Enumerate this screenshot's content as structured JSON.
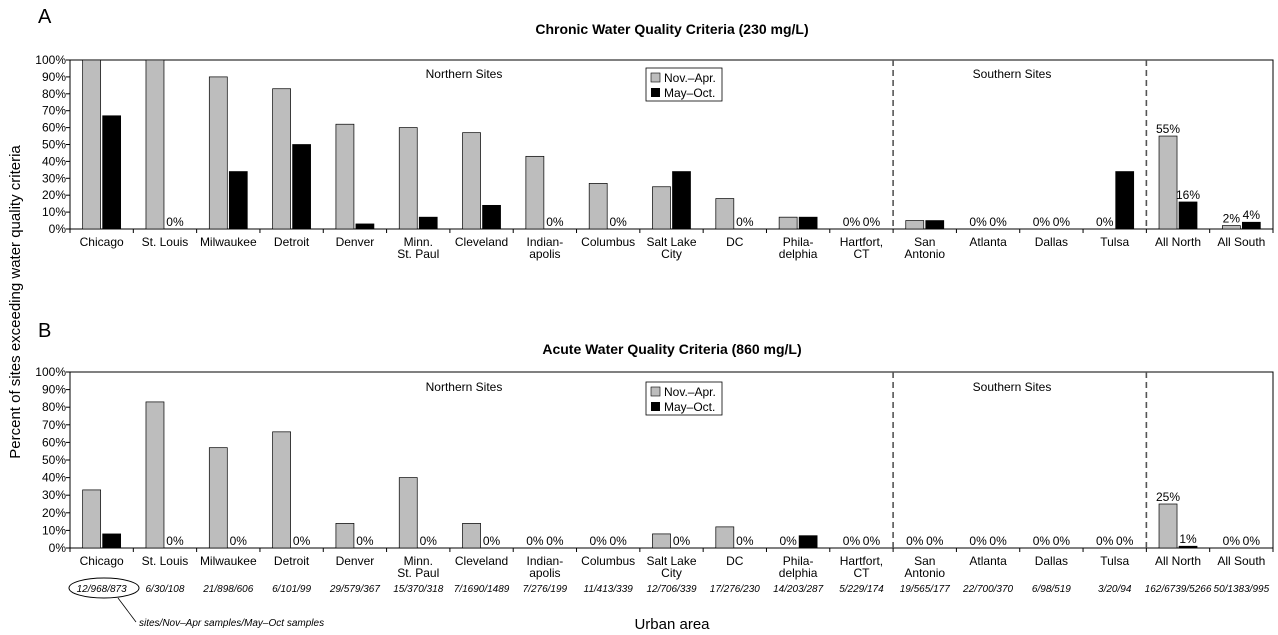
{
  "y_axis_title": "Percent of sites exceeding water quality criteria",
  "x_axis_title": "Urban area",
  "sample_note": "sites/Nov–Apr samples/May–Oct samples",
  "regions": {
    "north": "Northern Sites",
    "south": "Southern Sites"
  },
  "legend": {
    "winter": "Nov.–Apr.",
    "summer": "May–Oct."
  },
  "colors": {
    "winter": "#bdbdbd",
    "summer": "#000000",
    "axis": "#000000",
    "divider": "#555555"
  },
  "sample_counts": [
    "12/968/873",
    "6/30/108",
    "21/898/606",
    "6/101/99",
    "29/579/367",
    "15/370/318",
    "7/1690/1489",
    "7/276/199",
    "11/413/339",
    "12/706/339",
    "17/276/230",
    "14/203/287",
    "5/229/174",
    "19/565/177",
    "22/700/370",
    "6/98/519",
    "3/20/94",
    "162/6739/5266",
    "50/1383/995"
  ],
  "chart_data": [
    {
      "panel": "A",
      "type": "bar",
      "title": "Chronic Water Quality Criteria (230 mg/L)",
      "ylim": [
        0,
        100
      ],
      "yticks": [
        "0%",
        "10%",
        "20%",
        "30%",
        "40%",
        "50%",
        "60%",
        "70%",
        "80%",
        "90%",
        "100%"
      ],
      "categories": [
        [
          "Chicago"
        ],
        [
          "St. Louis"
        ],
        [
          "Milwaukee"
        ],
        [
          "Detroit"
        ],
        [
          "Denver"
        ],
        [
          "Minn.",
          "St. Paul"
        ],
        [
          "Cleveland"
        ],
        [
          "Indian-",
          "apolis"
        ],
        [
          "Columbus"
        ],
        [
          "Salt Lake",
          "City"
        ],
        [
          "DC"
        ],
        [
          "Phila-",
          "delphia"
        ],
        [
          "Hartfort,",
          "CT"
        ],
        [
          "San",
          "Antonio"
        ],
        [
          "Atlanta"
        ],
        [
          "Dallas"
        ],
        [
          "Tulsa"
        ],
        [
          "All North"
        ],
        [
          "All South"
        ]
      ],
      "series": [
        {
          "name": "Nov.–Apr.",
          "values": [
            100,
            100,
            90,
            83,
            62,
            60,
            57,
            43,
            27,
            25,
            18,
            7,
            0,
            5,
            0,
            0,
            0,
            55,
            2
          ],
          "labels": [
            "",
            "",
            "",
            "",
            "",
            "",
            "",
            "",
            "",
            "",
            "",
            "",
            "0%",
            "",
            "0%",
            "0%",
            "0%",
            "55%",
            "2%"
          ]
        },
        {
          "name": "May–Oct.",
          "values": [
            67,
            0,
            34,
            50,
            3,
            7,
            14,
            0,
            0,
            34,
            0,
            7,
            0,
            5,
            0,
            0,
            34,
            16,
            4
          ],
          "labels": [
            "",
            "0%",
            "",
            "",
            "",
            "",
            "",
            "0%",
            "0%",
            "",
            "0%",
            "",
            "0%",
            "",
            "0%",
            "0%",
            "",
            "16%",
            "4%"
          ]
        }
      ],
      "legend": "top-center",
      "grid": false
    },
    {
      "panel": "B",
      "type": "bar",
      "title": "Acute Water Quality Criteria (860 mg/L)",
      "ylim": [
        0,
        100
      ],
      "yticks": [
        "0%",
        "10%",
        "20%",
        "30%",
        "40%",
        "50%",
        "60%",
        "70%",
        "80%",
        "90%",
        "100%"
      ],
      "categories": [
        [
          "Chicago"
        ],
        [
          "St. Louis"
        ],
        [
          "Milwaukee"
        ],
        [
          "Detroit"
        ],
        [
          "Denver"
        ],
        [
          "Minn.",
          "St. Paul"
        ],
        [
          "Cleveland"
        ],
        [
          "Indian-",
          "apolis"
        ],
        [
          "Columbus"
        ],
        [
          "Salt Lake",
          "City"
        ],
        [
          "DC"
        ],
        [
          "Phila-",
          "delphia"
        ],
        [
          "Hartfort,",
          "CT"
        ],
        [
          "San",
          "Antonio"
        ],
        [
          "Atlanta"
        ],
        [
          "Dallas"
        ],
        [
          "Tulsa"
        ],
        [
          "All North"
        ],
        [
          "All South"
        ]
      ],
      "series": [
        {
          "name": "Nov.–Apr.",
          "values": [
            33,
            83,
            57,
            66,
            14,
            40,
            14,
            0,
            0,
            8,
            12,
            0,
            0,
            0,
            0,
            0,
            0,
            25,
            0
          ],
          "labels": [
            "",
            "",
            "",
            "",
            "",
            "",
            "",
            "0%",
            "0%",
            "",
            "",
            "0%",
            "0%",
            "0%",
            "0%",
            "0%",
            "0%",
            "25%",
            "0%"
          ]
        },
        {
          "name": "May–Oct.",
          "values": [
            8,
            0,
            0,
            0,
            0,
            0,
            0,
            0,
            0,
            0,
            0,
            7,
            0,
            0,
            0,
            0,
            0,
            1,
            0
          ],
          "labels": [
            "",
            "0%",
            "0%",
            "0%",
            "0%",
            "0%",
            "0%",
            "0%",
            "0%",
            "0%",
            "0%",
            "",
            "0%",
            "0%",
            "0%",
            "0%",
            "0%",
            "1%",
            "0%"
          ]
        }
      ],
      "legend": "top-center",
      "grid": false
    }
  ]
}
